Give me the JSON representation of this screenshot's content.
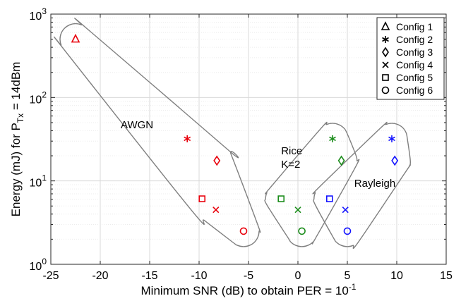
{
  "chart_data": {
    "type": "scatter",
    "title": "",
    "xlabel": {
      "main": "Minimum SNR (dB) to obtain PER = 10",
      "sup": "-1"
    },
    "ylabel": {
      "main": "Energy (mJ) for P",
      "sub": "Tx",
      "tail": " = 14dBm"
    },
    "x_scale": "linear",
    "y_scale": "log",
    "xlim": [
      -25,
      15
    ],
    "ylim": [
      1,
      1000
    ],
    "x_ticks": [
      -25,
      -20,
      -15,
      -10,
      -5,
      0,
      5,
      10,
      15
    ],
    "x_tick_labels": [
      "-25",
      "-20",
      "-15",
      "-10",
      "-5",
      "0",
      "5",
      "10",
      "15"
    ],
    "y_ticks": [
      1,
      10,
      100,
      1000
    ],
    "y_tick_labels": [
      {
        "base": "10",
        "exp": "0"
      },
      {
        "base": "10",
        "exp": "1"
      },
      {
        "base": "10",
        "exp": "2"
      },
      {
        "base": "10",
        "exp": "3"
      }
    ],
    "grid": true,
    "legend_position": "top-right",
    "legend": [
      {
        "label": "Config 1",
        "marker": "triangle"
      },
      {
        "label": "Config 2",
        "marker": "asterisk"
      },
      {
        "label": "Config 3",
        "marker": "diamond"
      },
      {
        "label": "Config 4",
        "marker": "x"
      },
      {
        "label": "Config 5",
        "marker": "square"
      },
      {
        "label": "Config 6",
        "marker": "circle"
      }
    ],
    "groups": [
      {
        "label": "AWGN",
        "color": "#e8000b",
        "points": [
          {
            "config": 1,
            "marker": "triangle",
            "x": -22.5,
            "y": 500
          },
          {
            "config": 2,
            "marker": "asterisk",
            "x": -11.2,
            "y": 32
          },
          {
            "config": 3,
            "marker": "diamond",
            "x": -8.2,
            "y": 17.5
          },
          {
            "config": 4,
            "marker": "x",
            "x": -8.3,
            "y": 4.5
          },
          {
            "config": 5,
            "marker": "square",
            "x": -9.7,
            "y": 6.1
          },
          {
            "config": 6,
            "marker": "circle",
            "x": -5.5,
            "y": 2.5
          }
        ]
      },
      {
        "label": "Rice\nK=2",
        "color": "#1a8c1a",
        "points": [
          {
            "config": 2,
            "marker": "asterisk",
            "x": 3.5,
            "y": 32
          },
          {
            "config": 3,
            "marker": "diamond",
            "x": 4.4,
            "y": 17.5
          },
          {
            "config": 4,
            "marker": "x",
            "x": 0,
            "y": 4.5
          },
          {
            "config": 5,
            "marker": "square",
            "x": -1.7,
            "y": 6.1
          },
          {
            "config": 6,
            "marker": "circle",
            "x": 0.4,
            "y": 2.5
          }
        ]
      },
      {
        "label": "Rayleigh",
        "color": "#1414ff",
        "points": [
          {
            "config": 2,
            "marker": "asterisk",
            "x": 9.5,
            "y": 32
          },
          {
            "config": 3,
            "marker": "diamond",
            "x": 9.8,
            "y": 17.5
          },
          {
            "config": 4,
            "marker": "x",
            "x": 4.8,
            "y": 4.5
          },
          {
            "config": 5,
            "marker": "square",
            "x": 3.2,
            "y": 6.1
          },
          {
            "config": 6,
            "marker": "circle",
            "x": 5,
            "y": 2.5
          }
        ]
      }
    ]
  }
}
